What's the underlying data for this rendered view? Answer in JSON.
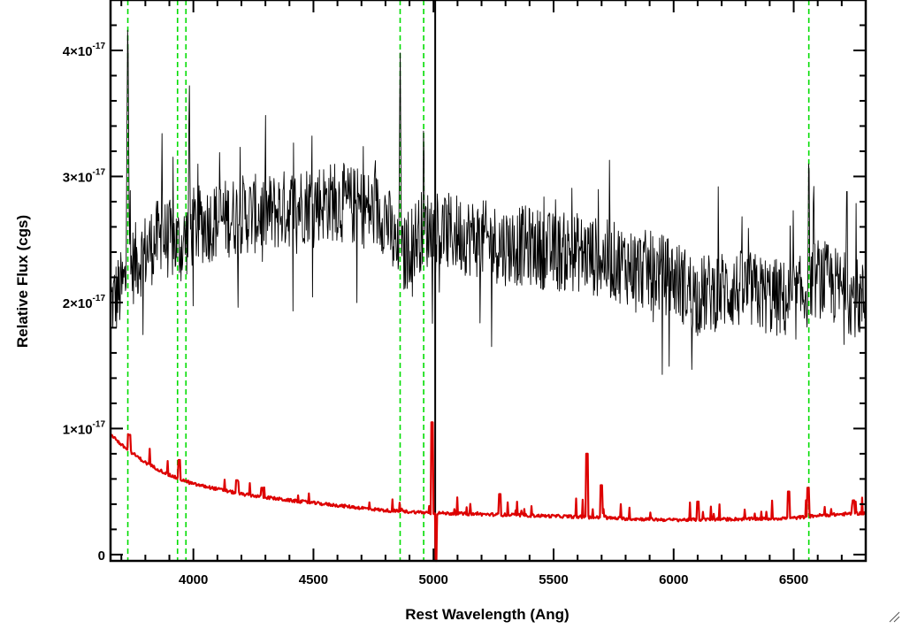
{
  "chart_data": {
    "type": "line",
    "title": "",
    "xlabel": "Rest Wavelength (Ang)",
    "ylabel": "Relative Flux (cgs)",
    "xlim": [
      3655,
      6800
    ],
    "ylim": [
      -5e-19,
      4.4e-17
    ],
    "x_ticks": [
      {
        "value": 4000,
        "label": "4000"
      },
      {
        "value": 4500,
        "label": "4500"
      },
      {
        "value": 5000,
        "label": "5000"
      },
      {
        "value": 5500,
        "label": "5500"
      },
      {
        "value": 6000,
        "label": "6000"
      },
      {
        "value": 6500,
        "label": "6500"
      }
    ],
    "y_ticks": [
      {
        "value": 0,
        "mantissa": "0",
        "exponent": ""
      },
      {
        "value": 1e-17,
        "mantissa": "1×10",
        "exponent": "-17"
      },
      {
        "value": 2e-17,
        "mantissa": "2×10",
        "exponent": "-17"
      },
      {
        "value": 3e-17,
        "mantissa": "3×10",
        "exponent": "-17"
      },
      {
        "value": 4e-17,
        "mantissa": "4×10",
        "exponent": "-17"
      }
    ],
    "vertical_lines": [
      {
        "x": 3727,
        "style": "dashed",
        "color": "#00dd00"
      },
      {
        "x": 3934,
        "style": "dashed",
        "color": "#00dd00"
      },
      {
        "x": 3969,
        "style": "dashed",
        "color": "#00dd00"
      },
      {
        "x": 4861,
        "style": "dashed",
        "color": "#00dd00"
      },
      {
        "x": 4959,
        "style": "dashed",
        "color": "#00dd00"
      },
      {
        "x": 6563,
        "style": "dashed",
        "color": "#00dd00"
      },
      {
        "x": 5007,
        "style": "solid",
        "color": "#000000"
      }
    ],
    "series": [
      {
        "color": "#000000",
        "style": "noisy",
        "continuum_x": [
          3660,
          3700,
          3750,
          3800,
          3850,
          3900,
          3950,
          4000,
          4100,
          4200,
          4300,
          4400,
          4500,
          4600,
          4700,
          4800,
          4860,
          4900,
          4960,
          5000,
          5100,
          5200,
          5300,
          5400,
          5500,
          5600,
          5700,
          5800,
          5900,
          6000,
          6100,
          6200,
          6300,
          6400,
          6500,
          6600,
          6700,
          6800
        ],
        "continuum_y": [
          2e-17,
          2.1e-17,
          2.3e-17,
          2.4e-17,
          2.5e-17,
          2.5e-17,
          2.45e-17,
          2.6e-17,
          2.65e-17,
          2.7e-17,
          2.7e-17,
          2.75e-17,
          2.8e-17,
          2.8e-17,
          2.75e-17,
          2.7e-17,
          2.3e-17,
          2.45e-17,
          2.6e-17,
          2.55e-17,
          2.55e-17,
          2.5e-17,
          2.45e-17,
          2.45e-17,
          2.4e-17,
          2.4e-17,
          2.35e-17,
          2.3e-17,
          2.25e-17,
          2.2e-17,
          2.05e-17,
          2.1e-17,
          2.1e-17,
          2.05e-17,
          2e-17,
          2.2e-17,
          2.1e-17,
          2e-17
        ],
        "noise_amplitude": 3.2e-18,
        "emission_lines": [
          {
            "x": 3727,
            "peak": 4.4e-17
          },
          {
            "x": 3869,
            "peak": 3.4e-17
          },
          {
            "x": 3983,
            "peak": 3.9e-17
          },
          {
            "x": 4861,
            "peak": 4.1e-17
          },
          {
            "x": 4959,
            "peak": 3.6e-17
          },
          {
            "x": 6563,
            "peak": 3.4e-17
          },
          {
            "x": 6583,
            "peak": 3.15e-17
          },
          {
            "x": 6720,
            "peak": 3e-17
          }
        ]
      },
      {
        "color": "#dd0000",
        "style": "error",
        "continuum_x": [
          3660,
          3700,
          3800,
          3900,
          4000,
          4200,
          4400,
          4600,
          4800,
          5000,
          5200,
          5400,
          5600,
          5800,
          6000,
          6200,
          6400,
          6500,
          6600,
          6800
        ],
        "continuum_y": [
          9.5e-18,
          8.7e-18,
          7.3e-18,
          6.3e-18,
          5.6e-18,
          4.8e-18,
          4.3e-18,
          3.9e-18,
          3.5e-18,
          3.3e-18,
          3.2e-18,
          3.1e-18,
          3e-18,
          2.85e-18,
          2.75e-18,
          2.8e-18,
          2.85e-18,
          2.9e-18,
          3.1e-18,
          3.3e-18
        ],
        "spikes": [
          {
            "x": 3735,
            "peak": 9.5e-18
          },
          {
            "x": 3940,
            "peak": 7.5e-18
          },
          {
            "x": 4180,
            "peak": 5.9e-18
          },
          {
            "x": 4285,
            "peak": 5.3e-18
          },
          {
            "x": 4995,
            "peak": 1.05e-17
          },
          {
            "x": 5277,
            "peak": 4.8e-18
          },
          {
            "x": 5640,
            "peak": 8e-18
          },
          {
            "x": 5700,
            "peak": 5.5e-18
          },
          {
            "x": 6100,
            "peak": 4.2e-18
          },
          {
            "x": 6480,
            "peak": 5e-18
          },
          {
            "x": 6560,
            "peak": 5.3e-18
          },
          {
            "x": 6750,
            "peak": 4.3e-18
          }
        ],
        "dip": {
          "x": 5010,
          "min": -5e-19
        }
      }
    ]
  }
}
